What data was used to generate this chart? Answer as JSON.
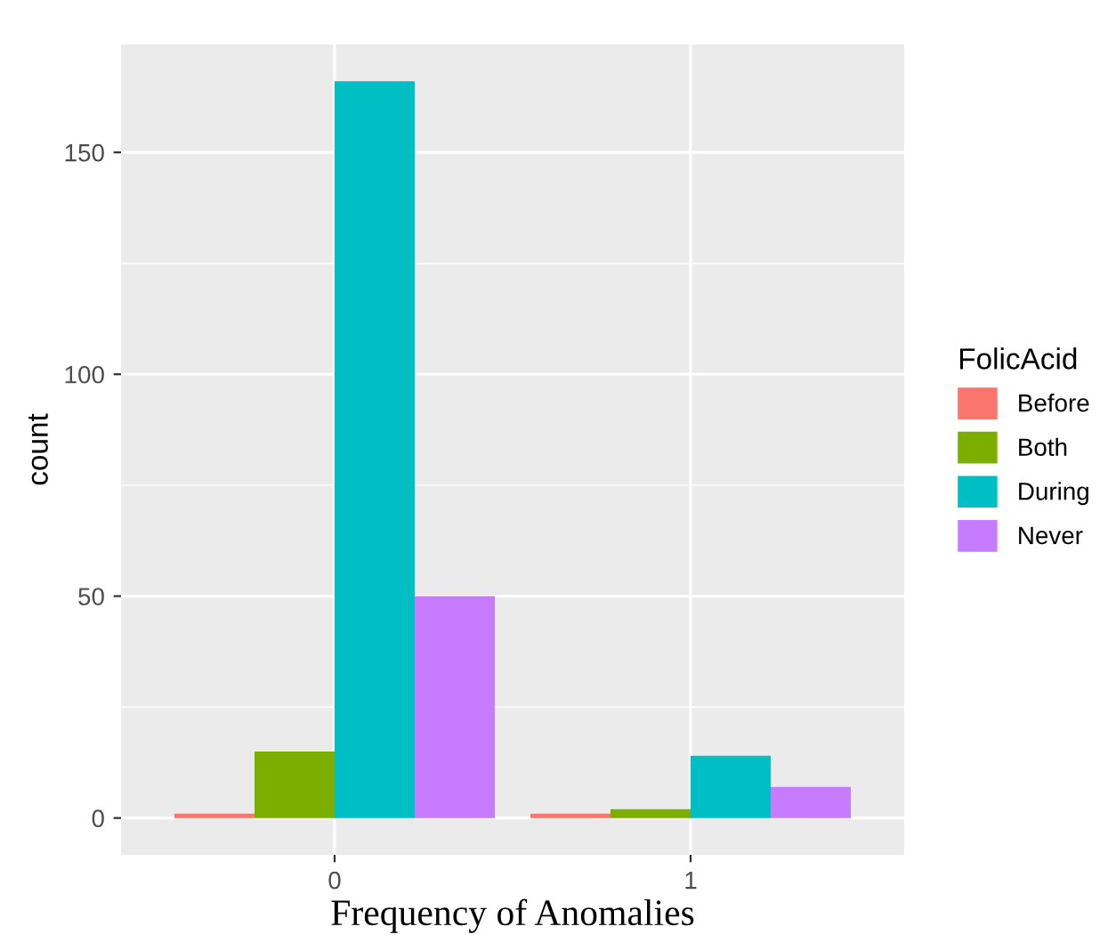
{
  "chart_data": {
    "type": "bar",
    "xlabel": "Frequency of Anomalies",
    "ylabel": "count",
    "legend_title": "FolicAcid",
    "categories": [
      "0",
      "1"
    ],
    "series": [
      {
        "name": "Before",
        "color": "#f8766d",
        "values": [
          1,
          1
        ]
      },
      {
        "name": "Both",
        "color": "#7cae00",
        "values": [
          15,
          2
        ]
      },
      {
        "name": "During",
        "color": "#00bfc4",
        "values": [
          166,
          14
        ]
      },
      {
        "name": "Never",
        "color": "#c77cff",
        "values": [
          50,
          7
        ]
      }
    ],
    "ylim": [
      -8.3,
      174.3
    ],
    "yticks": [
      0,
      50,
      100,
      150
    ],
    "grid": true,
    "legend": "right"
  }
}
